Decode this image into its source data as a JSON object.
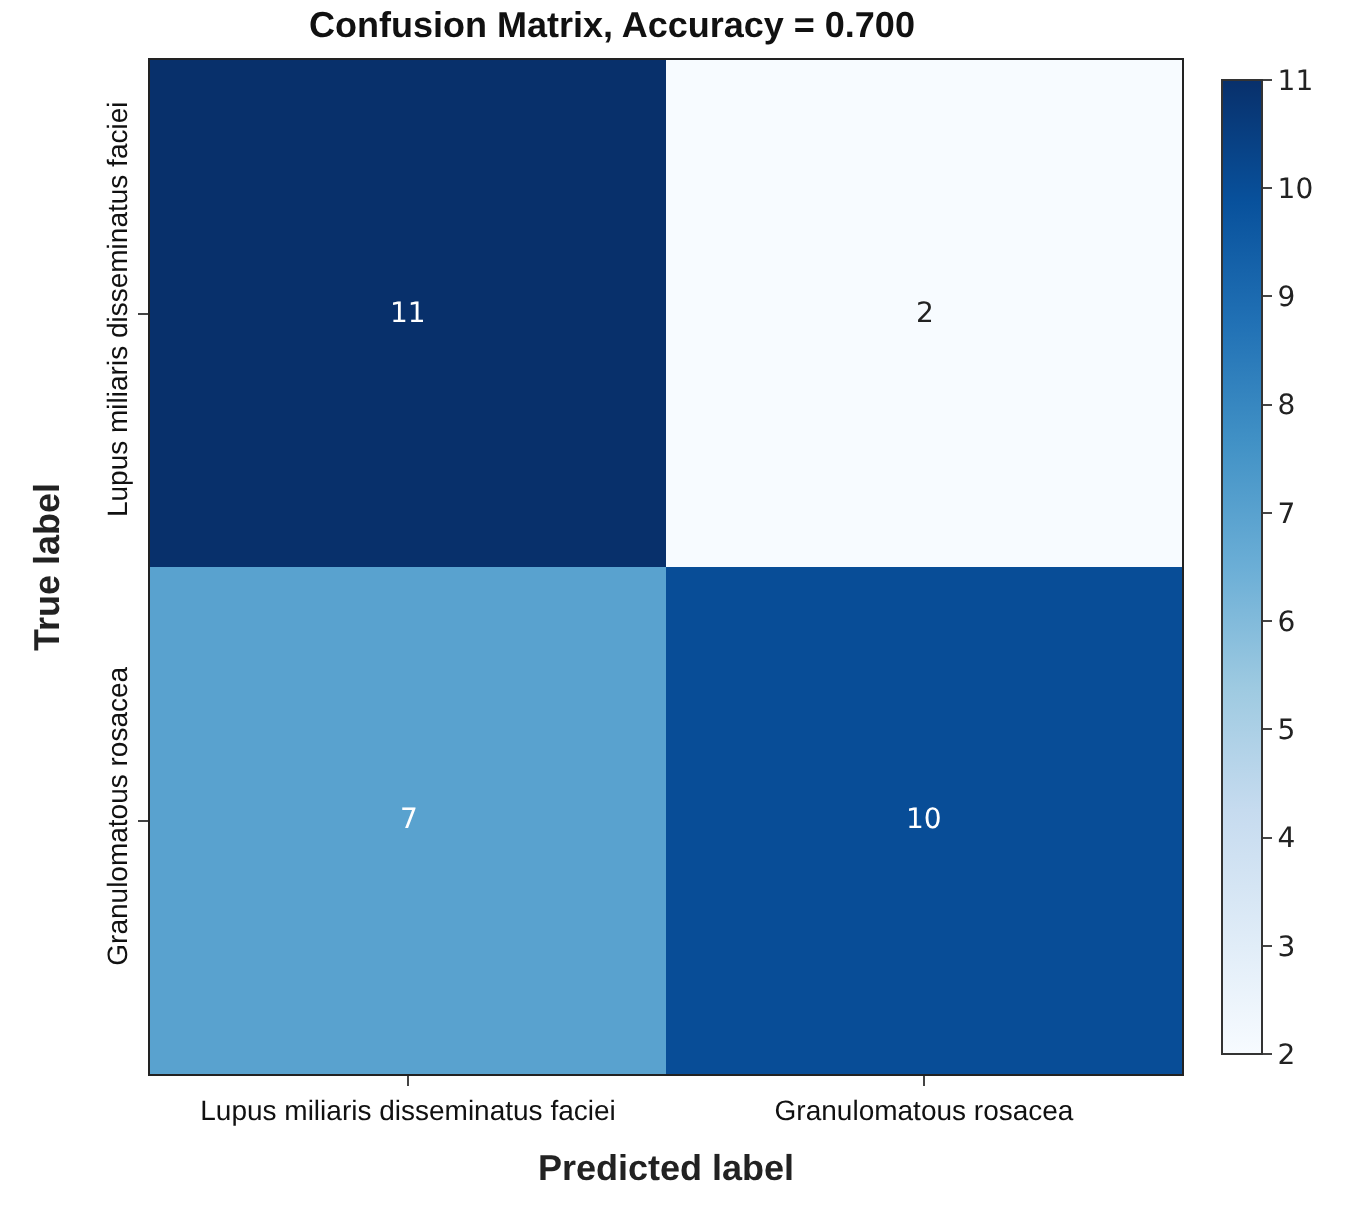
{
  "chart_data": {
    "type": "heatmap",
    "title": "Confusion Matrix, Accuracy = 0.700",
    "xlabel": "Predicted label",
    "ylabel": "True label",
    "categories": [
      "Lupus miliaris disseminatus faciei",
      "Granulomatous rosacea"
    ],
    "y_categories": [
      "Lupus miliaris disseminatus faciei",
      "Granulomatous rosacea"
    ],
    "cells": [
      [
        11,
        2
      ],
      [
        7,
        10
      ]
    ],
    "clim": [
      2,
      11
    ],
    "cticks": [
      2,
      3,
      4,
      5,
      6,
      7,
      8,
      9,
      10,
      11
    ],
    "data_labels": true
  }
}
